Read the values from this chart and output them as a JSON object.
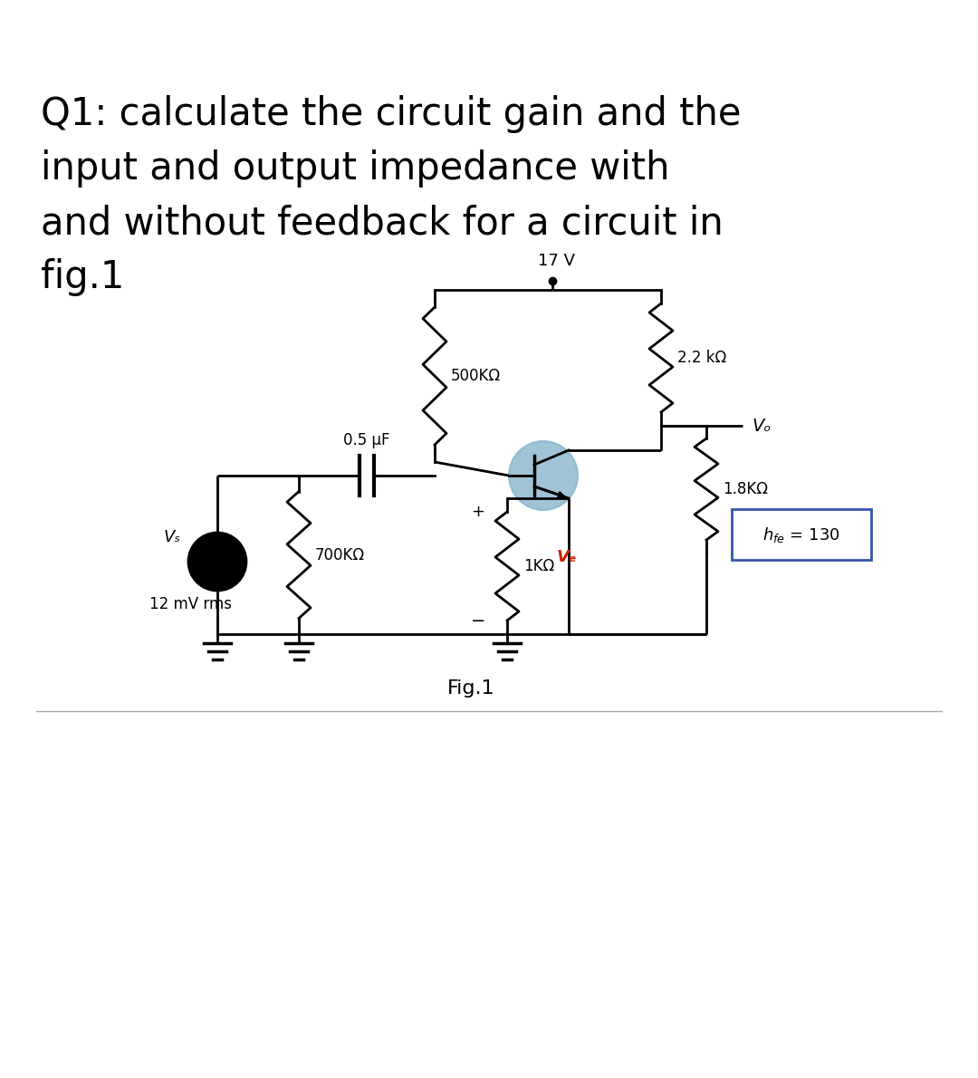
{
  "title_text": "Q1: calculate the circuit gain and the\ninput and output impedance with\nand without feedback for a circuit in\nfig.1",
  "title_fontsize": 30,
  "bg_color": "#ffffff",
  "circuit_color": "#000000",
  "resistor_color": "#000000",
  "transistor_fill": "#b8d4e8",
  "transistor_circle_color": "#8ab4cc",
  "label_17V": "17 V",
  "label_2k2": "2.2 kΩ",
  "label_500K": "500KΩ",
  "label_18K": "1.8KΩ",
  "label_hfe": "hₑₑ = 130",
  "label_05uF": "0.5 μF",
  "label_Vs": "Vₛ",
  "label_12mV": "12 mV rms",
  "label_700K": "700KΩ",
  "label_1K": "1KΩ",
  "label_Vf": "Vₑ",
  "label_Vo": "Vₒ",
  "label_fig": "Fig.1",
  "plus_label": "+",
  "minus_label": "−"
}
